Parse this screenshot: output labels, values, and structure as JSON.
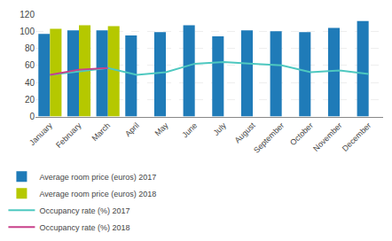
{
  "chart_data": {
    "type": "bar",
    "categories": [
      "January",
      "February",
      "March",
      "April",
      "May",
      "June",
      "July",
      "August",
      "September",
      "October",
      "November",
      "December"
    ],
    "series": [
      {
        "name": "Average room price (euros) 2017",
        "type": "bar",
        "color": "#1f7bb8",
        "values": [
          97,
          101,
          101,
          95,
          99,
          107,
          94,
          101,
          100,
          99,
          104,
          112
        ]
      },
      {
        "name": "Average room price (euros) 2018",
        "type": "bar",
        "color": "#b5c800",
        "values": [
          103,
          107,
          106,
          null,
          null,
          null,
          null,
          null,
          null,
          null,
          null,
          null
        ]
      },
      {
        "name": "Occupancy rate (%) 2017",
        "type": "line",
        "color": "#4ec8c0",
        "line_style": "solid",
        "values": [
          49,
          53,
          57,
          49,
          52,
          62,
          64,
          62,
          60,
          52,
          54,
          50
        ]
      },
      {
        "name": "Occupancy rate (%) 2018",
        "type": "line",
        "color": "#c8408a",
        "line_style": "solid",
        "values": [
          49,
          55,
          57,
          null,
          null,
          null,
          null,
          null,
          null,
          null,
          null,
          null
        ]
      }
    ],
    "ylim": [
      0,
      120
    ],
    "yticks": [
      0,
      20,
      40,
      60,
      80,
      100,
      120
    ],
    "grid": true,
    "legend": "bottom"
  }
}
